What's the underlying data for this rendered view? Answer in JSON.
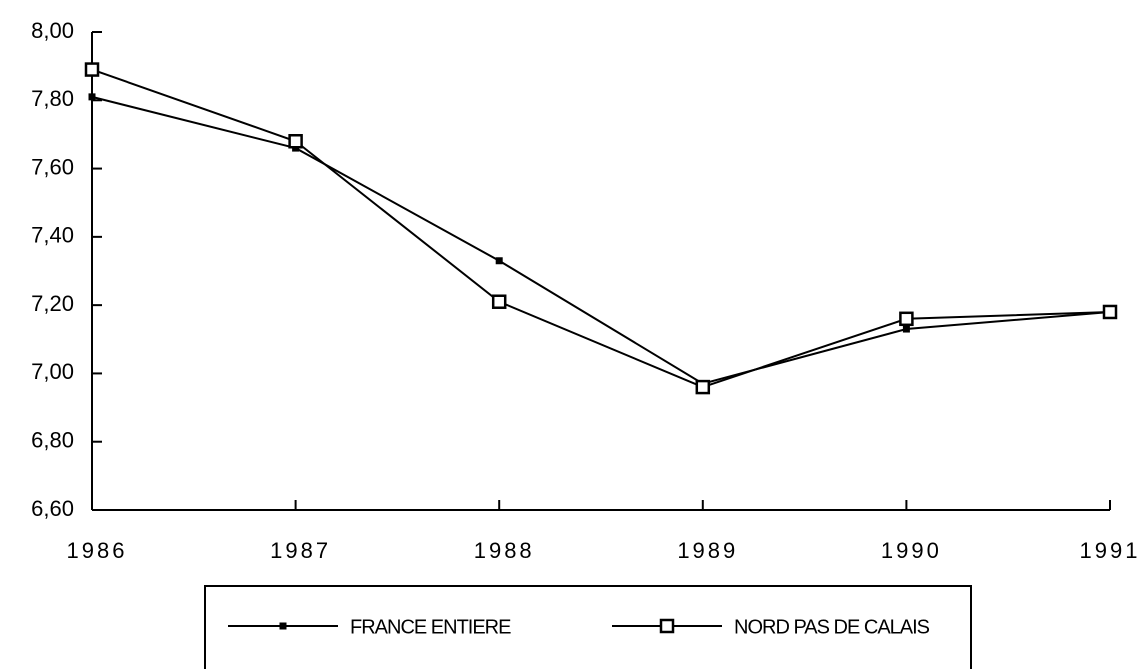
{
  "chart_data": {
    "type": "line",
    "categories": [
      "1986",
      "1987",
      "1988",
      "1989",
      "1990",
      "1991"
    ],
    "series": [
      {
        "name": "FRANCE ENTIERE",
        "color": "#000000",
        "marker": "filled-square",
        "values": [
          7.81,
          7.66,
          7.33,
          6.97,
          7.13,
          7.18
        ]
      },
      {
        "name": "NORD PAS DE CALAIS",
        "color": "#000000",
        "marker": "open-square",
        "values": [
          7.89,
          7.68,
          7.21,
          6.96,
          7.16,
          7.18
        ]
      }
    ],
    "ylim": [
      6.6,
      8.0
    ],
    "yticks": [
      {
        "value": 6.6,
        "label": "6,60"
      },
      {
        "value": 6.8,
        "label": "6,80"
      },
      {
        "value": 7.0,
        "label": "7,00"
      },
      {
        "value": 7.2,
        "label": "7,20"
      },
      {
        "value": 7.4,
        "label": "7,40"
      },
      {
        "value": 7.6,
        "label": "7,60"
      },
      {
        "value": 7.8,
        "label": "7,80"
      },
      {
        "value": 8.0,
        "label": "8,00"
      }
    ],
    "grid": false,
    "legend": "bottom"
  }
}
